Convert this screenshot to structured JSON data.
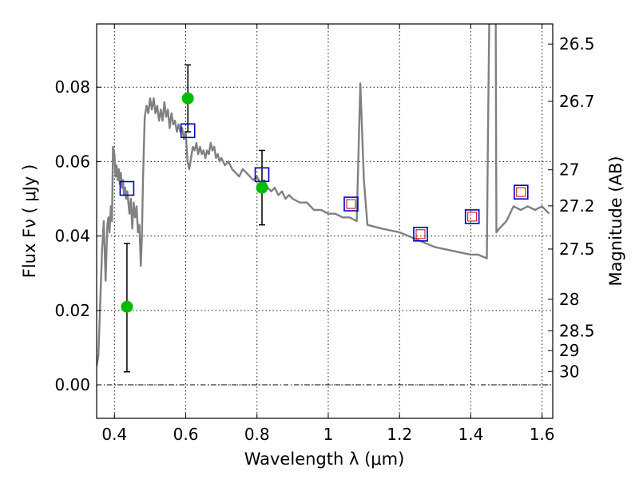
{
  "chart_data": {
    "type": "scatter",
    "xlabel": "Wavelength  λ (μm)",
    "ylabel": "Flux  Fν  ( μJy )",
    "ylabel_right": "Magnitude (AB)",
    "xlim": [
      0.35,
      1.63
    ],
    "ylim": [
      -0.009,
      0.097
    ],
    "grid": true,
    "x_ticks": [
      {
        "value": 0.4,
        "label": "0.4"
      },
      {
        "value": 0.6,
        "label": "0.6"
      },
      {
        "value": 0.8,
        "label": "0.8"
      },
      {
        "value": 1.0,
        "label": "1"
      },
      {
        "value": 1.2,
        "label": "1.2"
      },
      {
        "value": 1.4,
        "label": "1.4"
      },
      {
        "value": 1.6,
        "label": "1.6"
      }
    ],
    "y_ticks": [
      {
        "value": 0.0,
        "label": "0.00"
      },
      {
        "value": 0.02,
        "label": "0.02"
      },
      {
        "value": 0.04,
        "label": "0.04"
      },
      {
        "value": 0.06,
        "label": "0.06"
      },
      {
        "value": 0.08,
        "label": "0.08"
      }
    ],
    "right_ticks": [
      {
        "label": "26.5",
        "flux": 0.0916
      },
      {
        "label": "26.7",
        "flux": 0.0762
      },
      {
        "label": "27",
        "flux": 0.0578
      },
      {
        "label": "27.2",
        "flux": 0.0481
      },
      {
        "label": "27.5",
        "flux": 0.0365
      },
      {
        "label": "28",
        "flux": 0.023
      },
      {
        "label": "28.5",
        "flux": 0.0145
      },
      {
        "label": "29",
        "flux": 0.0092
      },
      {
        "label": "30",
        "flux": 0.0036
      }
    ],
    "colors": {
      "model": "#808080",
      "observed": "#00bb00",
      "model_photometry": "#0000cc",
      "inner_square": "#cc0000",
      "errorbar": "#000000"
    },
    "model_spectrum": {
      "x": [
        0.35,
        0.355,
        0.36,
        0.365,
        0.37,
        0.375,
        0.38,
        0.383,
        0.386,
        0.39,
        0.393,
        0.396,
        0.4,
        0.403,
        0.406,
        0.409,
        0.412,
        0.415,
        0.418,
        0.421,
        0.424,
        0.427,
        0.43,
        0.433,
        0.436,
        0.439,
        0.442,
        0.446,
        0.45,
        0.454,
        0.458,
        0.462,
        0.466,
        0.47,
        0.474,
        0.477,
        0.48,
        0.485,
        0.49,
        0.495,
        0.5,
        0.505,
        0.51,
        0.515,
        0.52,
        0.525,
        0.53,
        0.535,
        0.54,
        0.545,
        0.55,
        0.555,
        0.56,
        0.565,
        0.57,
        0.575,
        0.58,
        0.585,
        0.59,
        0.595,
        0.6,
        0.605,
        0.61,
        0.615,
        0.62,
        0.625,
        0.63,
        0.635,
        0.64,
        0.645,
        0.65,
        0.655,
        0.66,
        0.665,
        0.67,
        0.675,
        0.68,
        0.685,
        0.69,
        0.695,
        0.7,
        0.71,
        0.72,
        0.73,
        0.74,
        0.75,
        0.76,
        0.77,
        0.78,
        0.79,
        0.8,
        0.81,
        0.82,
        0.83,
        0.84,
        0.85,
        0.86,
        0.87,
        0.88,
        0.89,
        0.9,
        0.92,
        0.94,
        0.96,
        0.98,
        1.0,
        1.02,
        1.04,
        1.06,
        1.08,
        1.09,
        1.1,
        1.11,
        1.15,
        1.2,
        1.25,
        1.3,
        1.35,
        1.4,
        1.42,
        1.445,
        1.448,
        1.452,
        1.47,
        1.472,
        1.48,
        1.5,
        1.52,
        1.54,
        1.56,
        1.58,
        1.6,
        1.62
      ],
      "y": [
        0.005,
        0.008,
        0.022,
        0.036,
        0.044,
        0.028,
        0.043,
        0.045,
        0.041,
        0.048,
        0.044,
        0.064,
        0.062,
        0.056,
        0.059,
        0.055,
        0.058,
        0.054,
        0.057,
        0.053,
        0.055,
        0.051,
        0.053,
        0.05,
        0.052,
        0.049,
        0.046,
        0.05,
        0.042,
        0.049,
        0.045,
        0.048,
        0.041,
        0.043,
        0.032,
        0.04,
        0.055,
        0.072,
        0.075,
        0.073,
        0.077,
        0.074,
        0.077,
        0.073,
        0.075,
        0.071,
        0.074,
        0.071,
        0.076,
        0.072,
        0.074,
        0.069,
        0.073,
        0.07,
        0.071,
        0.068,
        0.07,
        0.068,
        0.069,
        0.066,
        0.068,
        0.06,
        0.058,
        0.061,
        0.064,
        0.063,
        0.065,
        0.062,
        0.064,
        0.062,
        0.063,
        0.061,
        0.063,
        0.062,
        0.065,
        0.063,
        0.064,
        0.061,
        0.062,
        0.06,
        0.061,
        0.059,
        0.06,
        0.058,
        0.057,
        0.056,
        0.058,
        0.057,
        0.056,
        0.055,
        0.056,
        0.054,
        0.055,
        0.053,
        0.052,
        0.053,
        0.051,
        0.052,
        0.05,
        0.051,
        0.05,
        0.049,
        0.049,
        0.047,
        0.047,
        0.046,
        0.046,
        0.045,
        0.045,
        0.044,
        0.081,
        0.055,
        0.043,
        0.042,
        0.041,
        0.039,
        0.037,
        0.036,
        0.035,
        0.035,
        0.034,
        0.065,
        0.099,
        0.099,
        0.041,
        0.042,
        0.044,
        0.048,
        0.047,
        0.048,
        0.047,
        0.048,
        0.046
      ]
    },
    "observed": [
      {
        "x": 0.435,
        "y": 0.021,
        "yerr_low": 0.0035,
        "yerr_high": 0.038
      },
      {
        "x": 0.606,
        "y": 0.077,
        "yerr_low": 0.068,
        "yerr_high": 0.086
      },
      {
        "x": 0.814,
        "y": 0.053,
        "yerr_low": 0.043,
        "yerr_high": 0.063
      }
    ],
    "model_photometry": [
      {
        "x": 0.435,
        "y": 0.0528,
        "inner": false
      },
      {
        "x": 0.606,
        "y": 0.0683,
        "inner": false
      },
      {
        "x": 0.814,
        "y": 0.0565,
        "inner": false
      },
      {
        "x": 1.064,
        "y": 0.0486,
        "inner": true
      },
      {
        "x": 1.259,
        "y": 0.0405,
        "inner": true
      },
      {
        "x": 1.404,
        "y": 0.0452,
        "inner": true
      },
      {
        "x": 1.541,
        "y": 0.0518,
        "inner": true
      }
    ]
  }
}
